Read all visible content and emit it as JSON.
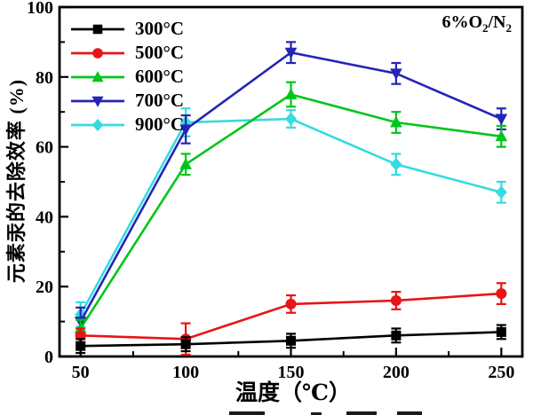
{
  "figure": {
    "annotation": {
      "prefix": "6%O",
      "sub_a": "2",
      "mid": "/N",
      "sub_b": "2"
    }
  },
  "chart_data": {
    "type": "line",
    "title": "",
    "xlabel": "温度（℃）",
    "ylabel": "元素汞的去除效率 (%)",
    "annotation": "6%O2/N2",
    "x": [
      50,
      100,
      150,
      200,
      250
    ],
    "xlim": [
      40,
      260
    ],
    "ylim": [
      0,
      100
    ],
    "x_ticks": [
      50,
      100,
      150,
      200,
      250
    ],
    "x_minor_ticks": [
      75,
      125,
      175,
      225
    ],
    "y_ticks": [
      0,
      20,
      40,
      60,
      80,
      100
    ],
    "y_minor_ticks": [
      10,
      30,
      50,
      70,
      90
    ],
    "grid": false,
    "legend_position": "top-left",
    "error_bars": true,
    "series": [
      {
        "name": "300°C",
        "color": "#000000",
        "marker": "square",
        "values": [
          3,
          3.5,
          4.5,
          6,
          7
        ],
        "errors": [
          2,
          2,
          2,
          2,
          2
        ]
      },
      {
        "name": "500°C",
        "color": "#e81416",
        "marker": "circle",
        "values": [
          6,
          5,
          15,
          16,
          18
        ],
        "errors": [
          2,
          4.5,
          2.5,
          2.5,
          3
        ]
      },
      {
        "name": "600°C",
        "color": "#00c51b",
        "marker": "triangle-up",
        "values": [
          8,
          55,
          75,
          67,
          63
        ],
        "errors": [
          2.5,
          3,
          3.5,
          3,
          3
        ]
      },
      {
        "name": "700°C",
        "color": "#2424b8",
        "marker": "triangle-down",
        "values": [
          10,
          65,
          87,
          81,
          68
        ],
        "errors": [
          4,
          4,
          3,
          3,
          3
        ]
      },
      {
        "name": "900°C",
        "color": "#35dbe0",
        "marker": "diamond",
        "values": [
          12,
          67,
          68,
          55,
          47
        ],
        "errors": [
          3.5,
          4,
          2.5,
          3,
          3
        ]
      }
    ],
    "z_order": [
      4,
      3,
      2,
      1,
      0
    ]
  }
}
